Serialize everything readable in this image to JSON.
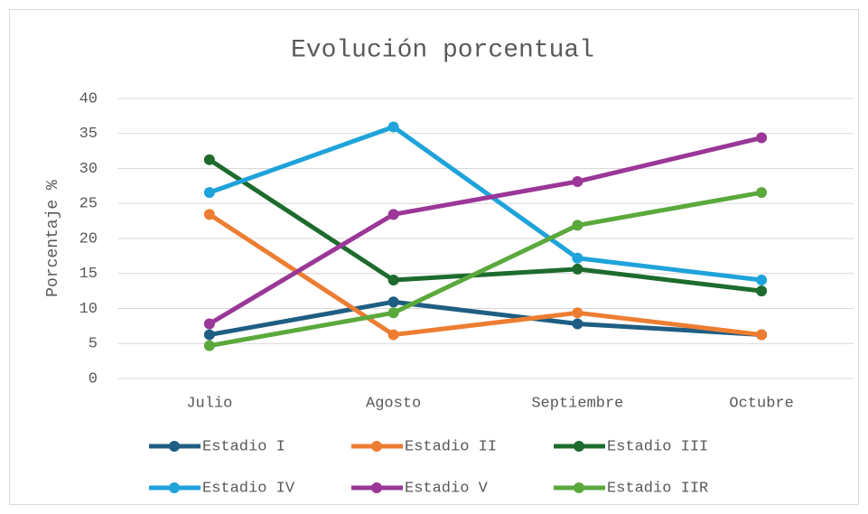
{
  "chart_data": {
    "type": "line",
    "title": "Evolución porcentual",
    "y_label": "Porcentaje %",
    "categories": [
      "Julio",
      "Agosto",
      "Septiembre",
      "Octubre"
    ],
    "series": [
      {
        "name": "Estadio I",
        "color": "#1f5e82",
        "values": [
          6.25,
          10.94,
          7.81,
          6.25
        ]
      },
      {
        "name": "Estadio II",
        "color": "#ed7d31",
        "values": [
          23.44,
          6.25,
          9.38,
          6.25
        ]
      },
      {
        "name": "Estadio III",
        "color": "#1d6b2d",
        "values": [
          31.25,
          14.06,
          15.63,
          12.5
        ]
      },
      {
        "name": "Estadio IV",
        "color": "#1ea3da",
        "values": [
          26.56,
          35.94,
          17.19,
          14.06
        ]
      },
      {
        "name": "Estadio V",
        "color": "#9a3797",
        "values": [
          7.81,
          23.44,
          28.13,
          34.38
        ]
      },
      {
        "name": "Estadio IIR",
        "color": "#5ba93c",
        "values": [
          4.69,
          9.38,
          21.88,
          26.56
        ]
      }
    ],
    "ylim": [
      0,
      40
    ],
    "yticks": [
      0,
      5,
      10,
      15,
      20,
      25,
      30,
      35,
      40
    ],
    "grid": true,
    "legend": "bottom"
  }
}
